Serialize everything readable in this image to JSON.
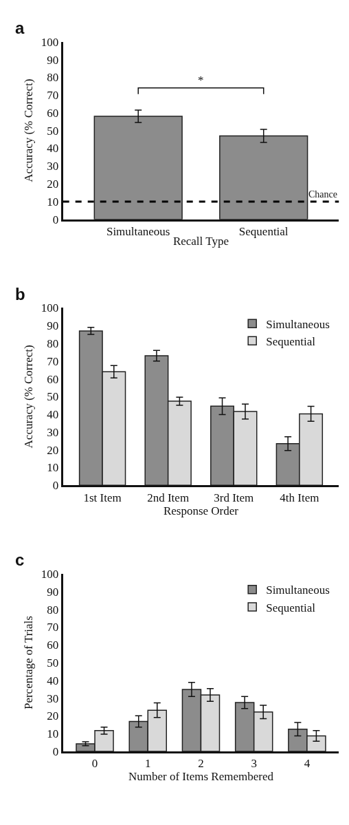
{
  "chart_data": [
    {
      "type": "bar",
      "title": "a",
      "xlabel": "Recall Type",
      "ylabel": "Accuracy (% Correct)",
      "categories": [
        "Simultaneous",
        "Sequential"
      ],
      "series": [
        {
          "color": "#8c8c8c",
          "values": [
            58,
            47
          ],
          "errors": [
            3.5,
            3.7
          ]
        }
      ],
      "ylim": [
        0,
        100
      ],
      "yticks": [
        0,
        10,
        20,
        30,
        40,
        50,
        60,
        70,
        80,
        90,
        100
      ],
      "ref_lines": [
        {
          "axis": "y",
          "value": 10,
          "label": "Chance",
          "color": "#000000",
          "line_style": "dashed"
        }
      ],
      "annotations": [
        "*"
      ]
    },
    {
      "type": "bar",
      "title": "b",
      "xlabel": "Response Order",
      "ylabel": "Accuracy (% Correct)",
      "categories": [
        "1st Item",
        "2nd Item",
        "3rd Item",
        "4th Item"
      ],
      "series": [
        {
          "name": "Simultaneous",
          "color": "#8c8c8c",
          "values": [
            87,
            73,
            44.6,
            23.5
          ],
          "errors": [
            2,
            3,
            4.7,
            3.9
          ]
        },
        {
          "name": "Sequential",
          "color": "#d9d9d9",
          "values": [
            64,
            47.4,
            41.6,
            40.3
          ],
          "errors": [
            3.5,
            2.3,
            4.2,
            4.2
          ]
        }
      ],
      "ylim": [
        0,
        100
      ],
      "yticks": [
        0,
        10,
        20,
        30,
        40,
        50,
        60,
        70,
        80,
        90,
        100
      ],
      "legend": "top right"
    },
    {
      "type": "bar",
      "title": "c",
      "xlabel": "Number of Items Remembered",
      "ylabel": "Percentage of Trials",
      "categories": [
        "0",
        "1",
        "2",
        "3",
        "4"
      ],
      "series": [
        {
          "name": "Simultaneous",
          "color": "#8c8c8c",
          "values": [
            4.3,
            16.9,
            34.9,
            27.5,
            12.5
          ],
          "errors": [
            1.1,
            3.2,
            4,
            3.4,
            3.8
          ]
        },
        {
          "name": "Sequential",
          "color": "#d9d9d9",
          "values": [
            11.7,
            23.2,
            31.8,
            22.2,
            8.7
          ],
          "errors": [
            2,
            4.1,
            3.6,
            3.8,
            3
          ]
        }
      ],
      "ylim": [
        0,
        100
      ],
      "yticks": [
        0,
        10,
        20,
        30,
        40,
        50,
        60,
        70,
        80,
        90,
        100
      ],
      "legend": "top right"
    }
  ]
}
